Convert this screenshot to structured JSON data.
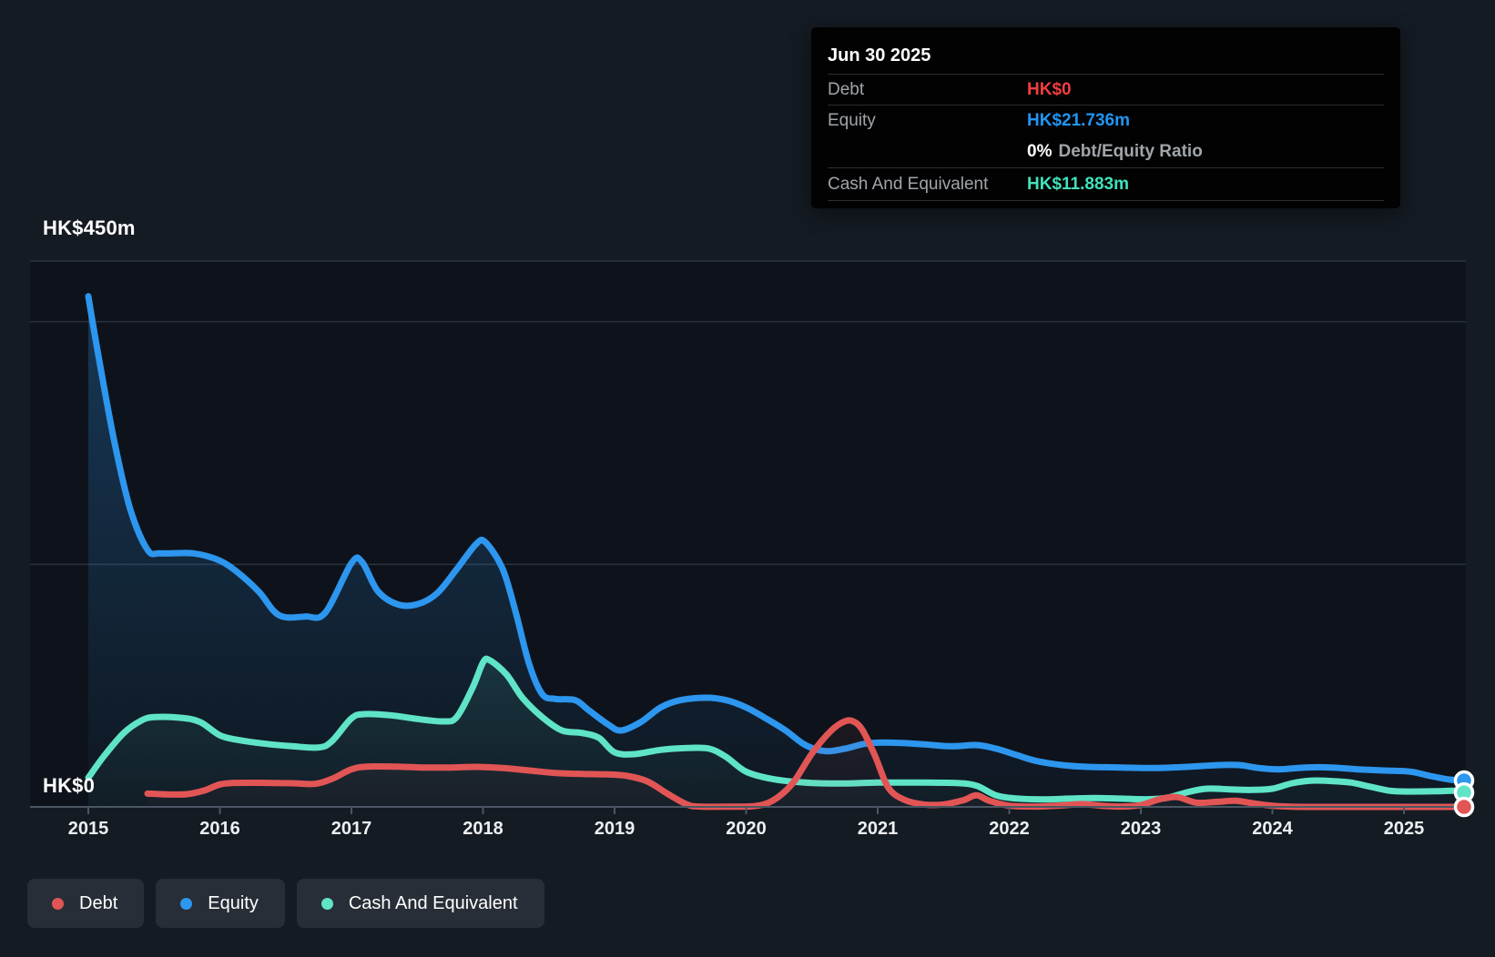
{
  "page": {
    "background": "#151b23",
    "plot_background": "#0e131b"
  },
  "tooltip": {
    "date": "Jun 30 2025",
    "debt_label": "Debt",
    "debt_value": "HK$0",
    "debt_color": "#f03e3e",
    "equity_label": "Equity",
    "equity_value": "HK$21.736m",
    "equity_color": "#2196f3",
    "ratio_value": "0%",
    "ratio_label": "Debt/Equity Ratio",
    "cash_label": "Cash And Equivalent",
    "cash_value": "HK$11.883m",
    "cash_color": "#40e2bb"
  },
  "legend": {
    "items": [
      {
        "label": "Debt",
        "color": "#e25555"
      },
      {
        "label": "Equity",
        "color": "#2d96ee"
      },
      {
        "label": "Cash And Equivalent",
        "color": "#5fe4c7"
      }
    ]
  },
  "chart_data": {
    "type": "area",
    "currency_unit": "HK$m",
    "y_axis": {
      "min": 0,
      "max": 450,
      "top_label": "HK$450m",
      "zero_label": "HK$0",
      "gridline_values": [
        450,
        400,
        200
      ]
    },
    "x_axis": {
      "ticks": [
        2015,
        2016,
        2017,
        2018,
        2019,
        2020,
        2021,
        2022,
        2023,
        2024,
        2025
      ],
      "range": [
        2014.56,
        2025.47
      ]
    },
    "series": [
      {
        "name": "Equity",
        "color": "#2d96ee",
        "final_label": "HK$21.736m",
        "points": [
          [
            2015.0,
            421
          ],
          [
            2015.08,
            370
          ],
          [
            2015.2,
            300
          ],
          [
            2015.32,
            245
          ],
          [
            2015.45,
            212
          ],
          [
            2015.55,
            209
          ],
          [
            2015.8,
            209
          ],
          [
            2016.0,
            203
          ],
          [
            2016.15,
            192
          ],
          [
            2016.3,
            177
          ],
          [
            2016.45,
            158
          ],
          [
            2016.65,
            157
          ],
          [
            2016.8,
            160
          ],
          [
            2017.0,
            201
          ],
          [
            2017.08,
            202
          ],
          [
            2017.2,
            178
          ],
          [
            2017.35,
            167
          ],
          [
            2017.5,
            167
          ],
          [
            2017.65,
            176
          ],
          [
            2017.8,
            196
          ],
          [
            2017.95,
            217
          ],
          [
            2018.02,
            218
          ],
          [
            2018.15,
            196
          ],
          [
            2018.25,
            160
          ],
          [
            2018.35,
            118
          ],
          [
            2018.45,
            93
          ],
          [
            2018.55,
            89
          ],
          [
            2018.7,
            88
          ],
          [
            2018.8,
            80
          ],
          [
            2018.95,
            68
          ],
          [
            2019.05,
            63
          ],
          [
            2019.2,
            70
          ],
          [
            2019.35,
            82
          ],
          [
            2019.5,
            88
          ],
          [
            2019.7,
            90
          ],
          [
            2019.85,
            88
          ],
          [
            2020.0,
            82
          ],
          [
            2020.15,
            73
          ],
          [
            2020.3,
            63
          ],
          [
            2020.45,
            51
          ],
          [
            2020.6,
            46
          ],
          [
            2020.75,
            48
          ],
          [
            2020.9,
            52
          ],
          [
            2021.05,
            53
          ],
          [
            2021.3,
            52
          ],
          [
            2021.55,
            50
          ],
          [
            2021.75,
            51
          ],
          [
            2021.9,
            48
          ],
          [
            2022.05,
            43
          ],
          [
            2022.2,
            38
          ],
          [
            2022.4,
            34.5
          ],
          [
            2022.6,
            33
          ],
          [
            2022.85,
            32.5
          ],
          [
            2023.1,
            32
          ],
          [
            2023.35,
            33
          ],
          [
            2023.6,
            34.5
          ],
          [
            2023.75,
            34.5
          ],
          [
            2023.9,
            32
          ],
          [
            2024.05,
            31
          ],
          [
            2024.25,
            32.5
          ],
          [
            2024.45,
            32.5
          ],
          [
            2024.65,
            31
          ],
          [
            2024.85,
            30
          ],
          [
            2025.05,
            29
          ],
          [
            2025.2,
            25.5
          ],
          [
            2025.35,
            22.5
          ],
          [
            2025.47,
            21.736
          ]
        ]
      },
      {
        "name": "Cash And Equivalent",
        "color": "#5fe4c7",
        "final_label": "HK$11.883m",
        "points": [
          [
            2015.0,
            24
          ],
          [
            2015.12,
            42
          ],
          [
            2015.27,
            61
          ],
          [
            2015.4,
            71
          ],
          [
            2015.5,
            74
          ],
          [
            2015.7,
            73.5
          ],
          [
            2015.85,
            70
          ],
          [
            2016.0,
            59
          ],
          [
            2016.15,
            55
          ],
          [
            2016.35,
            52
          ],
          [
            2016.55,
            50
          ],
          [
            2016.75,
            49
          ],
          [
            2016.85,
            54
          ],
          [
            2017.0,
            73
          ],
          [
            2017.1,
            76.5
          ],
          [
            2017.3,
            75.5
          ],
          [
            2017.5,
            72.5
          ],
          [
            2017.7,
            70.5
          ],
          [
            2017.8,
            74
          ],
          [
            2017.92,
            98
          ],
          [
            2018.0,
            119
          ],
          [
            2018.05,
            121
          ],
          [
            2018.18,
            109
          ],
          [
            2018.3,
            90
          ],
          [
            2018.45,
            74
          ],
          [
            2018.6,
            63
          ],
          [
            2018.75,
            61
          ],
          [
            2018.88,
            57
          ],
          [
            2019.0,
            45
          ],
          [
            2019.15,
            43.5
          ],
          [
            2019.35,
            47
          ],
          [
            2019.55,
            48.5
          ],
          [
            2019.72,
            48
          ],
          [
            2019.85,
            41
          ],
          [
            2020.0,
            29
          ],
          [
            2020.2,
            23
          ],
          [
            2020.45,
            20
          ],
          [
            2020.7,
            19.3
          ],
          [
            2021.0,
            20
          ],
          [
            2021.35,
            20
          ],
          [
            2021.6,
            19.7
          ],
          [
            2021.75,
            17.5
          ],
          [
            2021.9,
            9.5
          ],
          [
            2022.05,
            7
          ],
          [
            2022.25,
            6.2
          ],
          [
            2022.45,
            6.8
          ],
          [
            2022.65,
            7.3
          ],
          [
            2022.85,
            6.8
          ],
          [
            2023.05,
            6.3
          ],
          [
            2023.2,
            7.5
          ],
          [
            2023.35,
            12
          ],
          [
            2023.5,
            15
          ],
          [
            2023.7,
            14.3
          ],
          [
            2023.85,
            14
          ],
          [
            2024.0,
            15
          ],
          [
            2024.15,
            19.5
          ],
          [
            2024.3,
            21.7
          ],
          [
            2024.45,
            21.3
          ],
          [
            2024.6,
            20
          ],
          [
            2024.75,
            16.5
          ],
          [
            2024.9,
            13.2
          ],
          [
            2025.05,
            12.7
          ],
          [
            2025.25,
            12.9
          ],
          [
            2025.38,
            13.3
          ],
          [
            2025.47,
            11.883
          ]
        ]
      },
      {
        "name": "Debt",
        "color": "#e25555",
        "final_label": "HK$0",
        "points": [
          [
            2015.45,
            11
          ],
          [
            2015.6,
            10.3
          ],
          [
            2015.75,
            10.5
          ],
          [
            2015.88,
            13.5
          ],
          [
            2016.0,
            18.5
          ],
          [
            2016.12,
            19.8
          ],
          [
            2016.35,
            19.8
          ],
          [
            2016.55,
            19.5
          ],
          [
            2016.72,
            19
          ],
          [
            2016.85,
            23
          ],
          [
            2017.0,
            31
          ],
          [
            2017.12,
            33.2
          ],
          [
            2017.35,
            33.2
          ],
          [
            2017.55,
            32.5
          ],
          [
            2017.75,
            32.5
          ],
          [
            2017.95,
            33
          ],
          [
            2018.15,
            32
          ],
          [
            2018.35,
            30
          ],
          [
            2018.55,
            28
          ],
          [
            2018.75,
            27.2
          ],
          [
            2018.95,
            26.8
          ],
          [
            2019.1,
            25.5
          ],
          [
            2019.25,
            21
          ],
          [
            2019.4,
            11
          ],
          [
            2019.55,
            2
          ],
          [
            2019.65,
            0.3
          ],
          [
            2019.85,
            0.2
          ],
          [
            2020.05,
            0.5
          ],
          [
            2020.2,
            5
          ],
          [
            2020.35,
            19
          ],
          [
            2020.5,
            44
          ],
          [
            2020.62,
            60
          ],
          [
            2020.72,
            69
          ],
          [
            2020.8,
            71
          ],
          [
            2020.88,
            64
          ],
          [
            2020.98,
            42
          ],
          [
            2021.08,
            16
          ],
          [
            2021.2,
            6
          ],
          [
            2021.35,
            2
          ],
          [
            2021.5,
            2
          ],
          [
            2021.65,
            5.5
          ],
          [
            2021.75,
            9.5
          ],
          [
            2021.85,
            5
          ],
          [
            2022.0,
            1
          ],
          [
            2022.2,
            0.3
          ],
          [
            2022.4,
            1.2
          ],
          [
            2022.55,
            2.3
          ],
          [
            2022.7,
            1
          ],
          [
            2022.85,
            0.3
          ],
          [
            2023.0,
            1.5
          ],
          [
            2023.15,
            6.5
          ],
          [
            2023.28,
            8
          ],
          [
            2023.42,
            3.5
          ],
          [
            2023.58,
            4.2
          ],
          [
            2023.72,
            5
          ],
          [
            2023.85,
            3
          ],
          [
            2024.0,
            1
          ],
          [
            2024.15,
            0.2
          ],
          [
            2024.4,
            0
          ],
          [
            2024.7,
            0
          ],
          [
            2025.0,
            0
          ],
          [
            2025.47,
            0
          ]
        ]
      }
    ]
  }
}
